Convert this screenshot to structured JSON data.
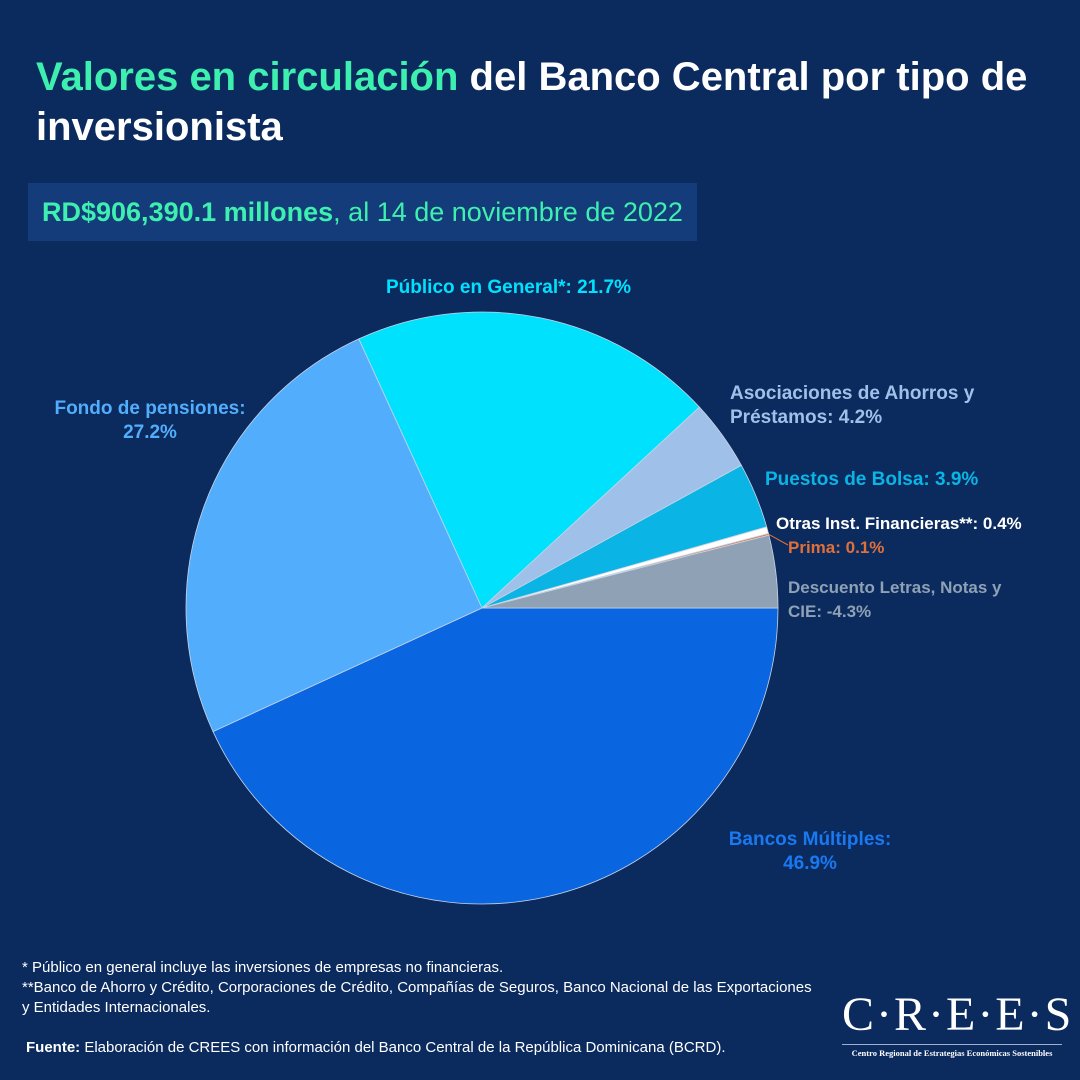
{
  "title": {
    "highlight": "Valores en circulación",
    "rest": " del Banco Central por tipo de inversionista"
  },
  "subtitle": {
    "bold": "RD$906,390.1 millones",
    "rest": ", al 14 de noviembre de 2022"
  },
  "chart_data": {
    "type": "pie",
    "start_angle_deg": 0,
    "direction": "clockwise",
    "slices": [
      {
        "label": "Bancos Múltiples:",
        "value_label": "46.9%",
        "value": 46.9,
        "color": "#0a66e0"
      },
      {
        "label": "Fondo de pensiones:",
        "value_label": "27.2%",
        "value": 27.2,
        "color": "#52aefc"
      },
      {
        "label": "Público en General*:",
        "value_label": "21.7%",
        "value": 21.7,
        "color": "#00e1fe"
      },
      {
        "label": "Asociaciones de Ahorros y Préstamos:",
        "value_label": "4.2%",
        "value": 4.2,
        "color": "#9fc1e9"
      },
      {
        "label": "Puestos de Bolsa:",
        "value_label": "3.9%",
        "value": 3.9,
        "color": "#0ab4e4"
      },
      {
        "label": "Otras Inst. Financieras**:",
        "value_label": "0.4%",
        "value": 0.4,
        "color": "#ffffff"
      },
      {
        "label": "Prima:",
        "value_label": "0.1%",
        "value": 0.1,
        "color": "#e0703a"
      },
      {
        "label": "Descuento Letras, Notas y CIE:",
        "value_label": "-4.3%",
        "value": 4.3,
        "color": "#8fa1b5"
      }
    ]
  },
  "notes": [
    "* Público en general incluye las inversiones de empresas no financieras.",
    "**Banco de Ahorro y Crédito, Corporaciones de Crédito, Compañías de Seguros, Banco Nacional de las Exportaciones y Entidades Internacionales."
  ],
  "source": {
    "bold": "Fuente:",
    "rest": " Elaboración de CREES con información del Banco Central de la República Dominicana (BCRD)."
  },
  "logo": {
    "name": "C·R·E·E·S",
    "tagline": "Centro Regional de Estrategias Económicas Sostenibles"
  }
}
